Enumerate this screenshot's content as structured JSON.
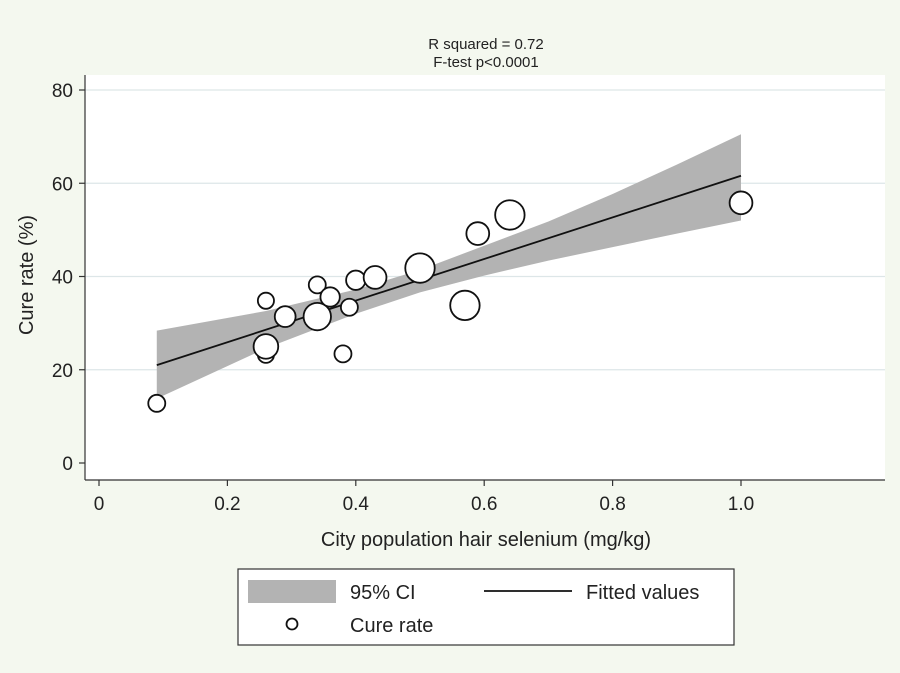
{
  "chart_data": {
    "type": "scatter",
    "annotations": [
      "R squared = 0.72",
      "F-test p<0.0001"
    ],
    "xlabel": "City population hair selenium (mg/kg)",
    "ylabel": "Cure rate (%)",
    "xlim": [
      0,
      1.2
    ],
    "ylim": [
      0,
      80
    ],
    "x_ticks": [
      0,
      0.2,
      0.4,
      0.6,
      0.8,
      1.0
    ],
    "x_tick_labels": [
      "0",
      "0.2",
      "0.4",
      "0.6",
      "0.8",
      "1.0"
    ],
    "y_ticks": [
      0,
      20,
      40,
      60,
      80
    ],
    "y_tick_labels": [
      "0",
      "20",
      "40",
      "60",
      "80"
    ],
    "grid": "horizontal",
    "legend_position": "bottom",
    "series": [
      {
        "name": "Cure rate",
        "kind": "scatter",
        "marker": "hollow-circle",
        "points": [
          {
            "x": 0.09,
            "y": 12.8,
            "weight": 1.0
          },
          {
            "x": 0.26,
            "y": 34.8,
            "weight": 0.9
          },
          {
            "x": 0.26,
            "y": 23.2,
            "weight": 0.9
          },
          {
            "x": 0.26,
            "y": 25.0,
            "weight": 2.1
          },
          {
            "x": 0.29,
            "y": 31.4,
            "weight": 1.5
          },
          {
            "x": 0.34,
            "y": 38.2,
            "weight": 1.0
          },
          {
            "x": 0.34,
            "y": 31.4,
            "weight": 2.6
          },
          {
            "x": 0.36,
            "y": 35.6,
            "weight": 1.3
          },
          {
            "x": 0.38,
            "y": 23.4,
            "weight": 1.0
          },
          {
            "x": 0.39,
            "y": 33.4,
            "weight": 1.0
          },
          {
            "x": 0.4,
            "y": 39.2,
            "weight": 1.3
          },
          {
            "x": 0.43,
            "y": 39.8,
            "weight": 1.8
          },
          {
            "x": 0.5,
            "y": 41.8,
            "weight": 3.0
          },
          {
            "x": 0.57,
            "y": 33.8,
            "weight": 3.0
          },
          {
            "x": 0.59,
            "y": 49.2,
            "weight": 1.8
          },
          {
            "x": 0.64,
            "y": 53.2,
            "weight": 3.0
          },
          {
            "x": 1.0,
            "y": 55.8,
            "weight": 1.8
          }
        ]
      },
      {
        "name": "Fitted values",
        "kind": "line",
        "x": [
          0.09,
          1.0
        ],
        "y": [
          21.0,
          61.6
        ]
      },
      {
        "name": "95% CI",
        "kind": "band",
        "x": [
          0.09,
          0.26,
          0.4,
          0.5,
          0.6,
          0.7,
          0.8,
          0.9,
          1.0
        ],
        "lower": [
          13.8,
          24.6,
          32.0,
          36.6,
          40.2,
          43.4,
          46.3,
          49.2,
          52.0
        ],
        "upper": [
          28.4,
          32.6,
          37.2,
          41.4,
          46.6,
          51.8,
          57.7,
          64.0,
          70.5
        ]
      }
    ],
    "legend": [
      {
        "label": "95% CI",
        "symbol": "band"
      },
      {
        "label": "Fitted values",
        "symbol": "line"
      },
      {
        "label": "Cure rate",
        "symbol": "hollow-circle"
      }
    ],
    "colors": {
      "background": "#f4f8ef",
      "plot_area": "#ffffff",
      "band": "#b3b3b3",
      "line": "#111111",
      "grid": "#dde6e8",
      "marker_stroke": "#111111"
    }
  }
}
